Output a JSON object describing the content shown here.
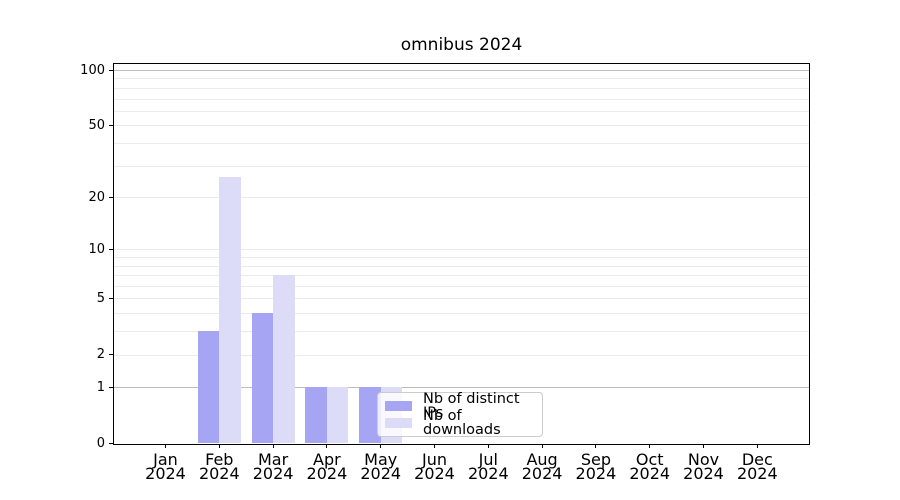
{
  "title": "omnibus 2024",
  "chart_data": {
    "type": "bar",
    "title": "omnibus 2024",
    "categories": [
      "Jan 2024",
      "Feb 2024",
      "Mar 2024",
      "Apr 2024",
      "May 2024",
      "Jun 2024",
      "Jul 2024",
      "Aug 2024",
      "Sep 2024",
      "Oct 2024",
      "Nov 2024",
      "Dec 2024"
    ],
    "series": [
      {
        "name": "Nb of distinct IPs",
        "color": "#a5a5f3",
        "values": [
          0,
          3,
          4,
          1,
          1,
          0,
          0,
          0,
          0,
          0,
          0,
          0
        ]
      },
      {
        "name": "Nb of downloads",
        "color": "#dcdcf9",
        "values": [
          0,
          26,
          7,
          1,
          1,
          0,
          0,
          0,
          0,
          0,
          0,
          0
        ]
      }
    ],
    "xlabel": "",
    "ylabel": "",
    "y_axis": {
      "scale": "log10(value+1)",
      "ticks": [
        0,
        1,
        2,
        5,
        10,
        20,
        50,
        100
      ],
      "major_gridlines": [
        1,
        100
      ],
      "minor_gridlines": [
        2,
        3,
        4,
        5,
        6,
        7,
        8,
        9,
        10,
        20,
        30,
        40,
        50,
        60,
        70,
        80,
        90
      ],
      "ylim": [
        0,
        110
      ]
    },
    "grid": true,
    "legend_position": "inside lower right"
  },
  "colors": {
    "background": "#ffffff",
    "bar_distinct_ips": "#a5a5f3",
    "bar_downloads": "#dcdcf9",
    "grid_major": "#bdbdbd",
    "grid_minor": "#ebebeb",
    "axis_line": "#000000",
    "legend_border": "#cccccc",
    "text": "#000000"
  }
}
